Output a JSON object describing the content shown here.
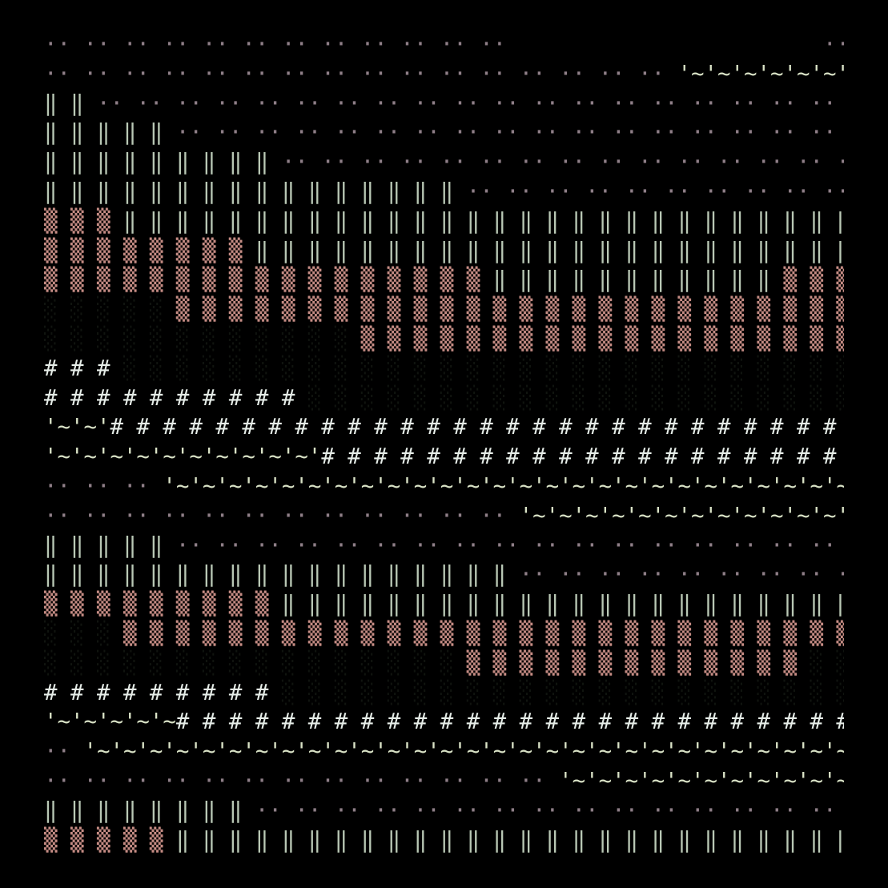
{
  "palette": {
    "background": "#000000",
    "dots": "#8f7f88",
    "bars": "#b9c8b5",
    "blocks": "#c58c84",
    "shade": "#10140f",
    "hash": "#e6ede8",
    "wave": "#d9e2c6"
  },
  "art": {
    "rows": [
      [
        [
          "dots",
          "·· ·· ·· ·· ·· ·· ·· ·· ·· ·· ·· ··"
        ],
        [
          "space",
          "                        "
        ],
        [
          "dots",
          "·· ··"
        ]
      ],
      [
        [
          "dots",
          "·· ·· ·· ·· ·· ·· ·· ·· ·· ·· ·· ·· ·· ·· ·· ·· "
        ],
        [
          "wave",
          "'~'~'~'~'~'~'~'~'~'~'~'~'~'~"
        ],
        [
          "dots",
          "·· ·· ·· ·· ·· ·· "
        ]
      ],
      [
        [
          "bars",
          "‖ ‖ "
        ],
        [
          "dots",
          "·· ·· ·· ·· ·· ·· ·· ·· ·· ·· ·· ·· ·· ·· ·· ·· ·· ·· ·· ·· ·· ·· ·· ·· ·· ·· ·· ·· ·· ·· ·· ·· ··"
        ]
      ],
      [
        [
          "bars",
          "‖ ‖ ‖ ‖ ‖ "
        ],
        [
          "dots",
          "·· ·· ·· ·· ·· ·· ·· ·· ·· ·· ·· ·· ·· ·· ·· ·· ·· ·· ·· ·· ·· ·· ·· ·· ·· ·· ·· ·· ··"
        ]
      ],
      [
        [
          "bars",
          "‖ ‖ ‖ ‖ ‖ ‖ ‖ ‖ ‖ "
        ],
        [
          "dots",
          "·· ·· ·· ·· ·· ·· ·· ·· ·· ·· ·· ·· ·· ·· ·· ·· ·· ·· ·· ·· ·· ·· ·· ·· ··"
        ]
      ],
      [
        [
          "bars",
          "‖ ‖ ‖ ‖ ‖ ‖ ‖ ‖ ‖ ‖ ‖ ‖ ‖ ‖ ‖ ‖ "
        ],
        [
          "dots",
          "·· ·· ·· ·· ·· ·· ·· ·· ·· ·· ·· ·· "
        ],
        [
          "bars",
          "‖ ‖ ‖ ‖ ‖ ‖ ‖ ‖"
        ]
      ],
      [
        [
          "blocks",
          "▒ ▒ ▒ "
        ],
        [
          "bars",
          "‖ ‖ ‖ ‖ ‖ ‖ ‖ ‖ ‖ ‖ ‖ ‖ ‖ ‖ ‖ ‖ ‖ ‖ ‖ ‖ ‖ ‖ ‖ ‖ ‖ ‖ ‖ ‖ ‖ ‖ ‖ ‖ ‖ ‖ ‖"
        ]
      ],
      [
        [
          "blocks",
          "▒ ▒ ▒ ▒ ▒ ▒ ▒ ▒ "
        ],
        [
          "bars",
          "‖ ‖ ‖ ‖ ‖ ‖ ‖ ‖ ‖ ‖ ‖ ‖ ‖ ‖ ‖ ‖ ‖ ‖ ‖ ‖ ‖ ‖ ‖ ‖ ‖ ‖ ‖ ‖ ‖ ‖"
        ]
      ],
      [
        [
          "blocks",
          "▒ ▒ ▒ ▒ ▒ ▒ ▒ ▒ ▒ ▒ ▒ ▒ ▒ ▒ ▒ ▒ ▒ "
        ],
        [
          "bars",
          "‖ ‖ ‖ ‖ ‖ ‖ ‖ ‖ ‖ ‖ ‖ "
        ],
        [
          "blocks",
          "▒ ▒ ▒ ▒ ▒ ▒ ▒ ▒"
        ]
      ],
      [
        [
          "shade",
          "░ ░ ░ ░ ░ "
        ],
        [
          "blocks",
          "▒ ▒ ▒ ▒ ▒ ▒ ▒ ▒ ▒ ▒ ▒ ▒ ▒ ▒ ▒ ▒ ▒ ▒ ▒ ▒ ▒ ▒ ▒ ▒ ▒ ▒ ▒ ▒ ▒ ▒ ▒"
        ]
      ],
      [
        [
          "shade",
          "░ ░ ░ ░ ░ ░ ░ ░ ░ ░ ░ ░ "
        ],
        [
          "blocks",
          "▒ ▒ ▒ ▒ ▒ ▒ ▒ ▒ ▒ ▒ ▒ ▒ ▒ ▒ ▒ ▒ ▒ ▒ ▒ ▒ ▒ ▒ "
        ],
        [
          "shade",
          "░ ░"
        ]
      ],
      [
        [
          "hash",
          "# # # "
        ],
        [
          "shade",
          "░ ░ ░ ░ ░ ░ ░ ░ ░ ░ ░ ░ ░ ░ ░ ░ ░ ░ ░ ░ ░ ░ ░ ░ ░ ░ ░ ░ ░ ░ ░ ░ ░ ░ ░"
        ]
      ],
      [
        [
          "hash",
          "# # # # # # # # # # "
        ],
        [
          "shade",
          "░ ░ ░ ░ ░ ░ ░ ░ ░ ░ ░ ░ ░ ░ ░ ░ ░ ░ ░ ░ ░ ░ ░ ░ ░ "
        ],
        [
          "hash",
          "# #"
        ]
      ],
      [
        [
          "wave",
          "'~'~'"
        ],
        [
          "hash",
          "# # # # # # # # # # # # # # # # # # # # # # # # # # # # # # # # # # # # #"
        ]
      ],
      [
        [
          "wave",
          "'~'~'~'~'~'~'~'~'~'~'"
        ],
        [
          "hash",
          "# # # # # # # # # # # # # # # # # # # # # # # # # "
        ],
        [
          "wave",
          "'~'~"
        ]
      ],
      [
        [
          "dots",
          "·· ·· ·· "
        ],
        [
          "wave",
          "'~'~'~'~'~'~'~'~'~'~'~'~'~'~'~'~'~'~'~'~'~'~'~'~'~'~'~'~'~'~'~'~'~'~'~'~'~'~'~'~'~'~'~"
        ]
      ],
      [
        [
          "dots",
          "·· ·· ·· ·· ·· ·· ·· ·· ·· ·· ·· ·· "
        ],
        [
          "wave",
          "'~'~'~'~'~'~'~'~'~'~'~'~'~'~'~'~'~'~'~'~'~'~'~"
        ],
        [
          "dots",
          "·· ·· ·· ·· "
        ]
      ],
      [
        [
          "bars",
          "‖ ‖ ‖ ‖ ‖ "
        ],
        [
          "dots",
          "·· ·· ·· ·· ·· ·· ·· ·· ·· ·· ·· ·· ·· ·· ·· ·· ·· ·· ·· ·· ·· ·· ·· ·· ·· ·· ·· ·· ··"
        ]
      ],
      [
        [
          "bars",
          "‖ ‖ ‖ ‖ ‖ ‖ ‖ ‖ ‖ ‖ ‖ ‖ ‖ ‖ ‖ ‖ ‖ ‖ "
        ],
        [
          "dots",
          "·· ·· ·· ·· ·· ·· ·· ·· ·· ·· "
        ],
        [
          "bars",
          "‖ ‖ ‖ ‖ ‖ ‖ ‖ ‖ ‖"
        ]
      ],
      [
        [
          "blocks",
          "▒ ▒ ▒ ▒ ▒ ▒ ▒ ▒ ▒ "
        ],
        [
          "bars",
          "‖ ‖ ‖ ‖ ‖ ‖ ‖ ‖ ‖ ‖ ‖ ‖ ‖ ‖ ‖ ‖ ‖ ‖ ‖ ‖ ‖ ‖ ‖ ‖ ‖ ‖ ‖ ‖"
        ]
      ],
      [
        [
          "shade",
          "░ ░ ░ "
        ],
        [
          "blocks",
          "▒ ▒ ▒ ▒ ▒ ▒ ▒ ▒ ▒ ▒ ▒ ▒ ▒ ▒ ▒ ▒ ▒ ▒ ▒ ▒ ▒ ▒ ▒ ▒ ▒ ▒ ▒ ▒ ▒ ▒ ▒ ▒ ▒ ▒ ▒"
        ]
      ],
      [
        [
          "shade",
          "░ ░ ░ ░ ░ ░ ░ ░ ░ ░ ░ ░ ░ ░ ░ ░ "
        ],
        [
          "blocks",
          "▒ ▒ ▒ ▒ ▒ ▒ ▒ ▒ ▒ ▒ ▒ ▒ ▒ "
        ],
        [
          "shade",
          "░ ░ ░ ░ ░ ░ ░ ░"
        ]
      ],
      [
        [
          "hash",
          "# # # # # # # # # "
        ],
        [
          "shade",
          "░ ░ ░ ░ ░ ░ ░ ░ ░ ░ ░ ░ ░ ░ ░ ░ ░ ░ ░ ░ ░ ░ ░ ░ ░ ░ ░ "
        ],
        [
          "hash",
          "#"
        ]
      ],
      [
        [
          "wave",
          "'~'~'~'~'~"
        ],
        [
          "hash",
          "# # # # # # # # # # # # # # # # # # # # # # # # # # # # # # # #"
        ]
      ],
      [
        [
          "dots",
          "·· "
        ],
        [
          "wave",
          "'~'~'~'~'~'~'~'~'~'~'~'~'~'~'~'~'~'~'~'~'~'~'~'~'~'~'~'~'~'~'~'~'~'~'~'~'~'~'~'~'~'~'~'~'~"
        ]
      ],
      [
        [
          "dots",
          "·· ·· ·· ·· ·· ·· ·· ·· ·· ·· ·· ·· ·· "
        ],
        [
          "wave",
          "'~'~'~'~'~'~'~'~'~'~'~'~'~'~'~'~'~'~'~'~'~"
        ],
        [
          "dots",
          "·· ·· ·· ·· "
        ]
      ],
      [
        [
          "bars",
          "‖ ‖ ‖ ‖ ‖ ‖ ‖ ‖ "
        ],
        [
          "dots",
          "·· ·· ·· ·· ·· ·· ·· ·· ·· ·· ·· ·· ·· ·· ·· ·· ·· ·· ·· ·· ·· ·· ·· ·· ·· ··"
        ]
      ],
      [
        [
          "blocks",
          "▒ ▒ ▒ ▒ ▒ "
        ],
        [
          "bars",
          "‖ ‖ ‖ ‖ ‖ ‖ ‖ ‖ ‖ ‖ ‖ ‖ ‖ ‖ ‖ ‖ ‖ ‖ ‖ ‖ ‖ ‖ ‖ ‖ ‖ ‖ ‖ ‖ ‖ ‖ ‖ ‖"
        ]
      ]
    ]
  }
}
